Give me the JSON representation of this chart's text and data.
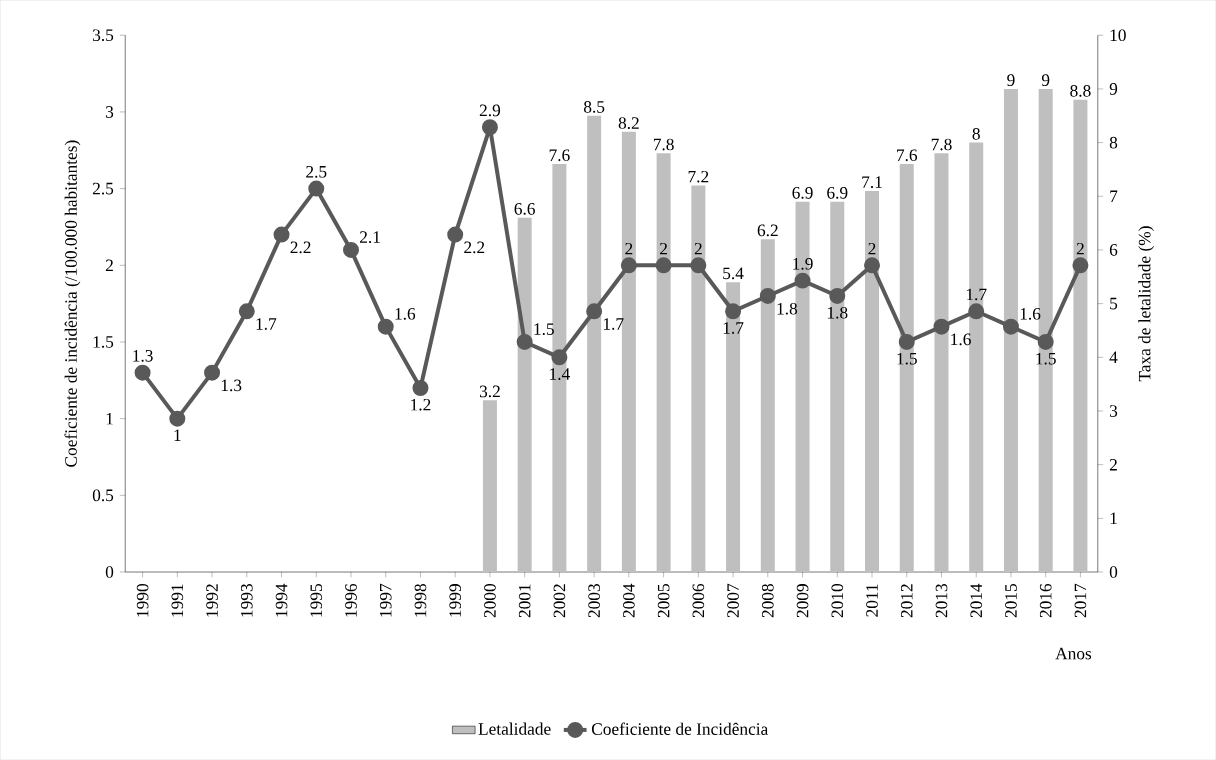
{
  "chart_data": {
    "type": "bar",
    "categories": [
      "1990",
      "1991",
      "1992",
      "1993",
      "1994",
      "1995",
      "1996",
      "1997",
      "1998",
      "1999",
      "2000",
      "2001",
      "2002",
      "2003",
      "2004",
      "2005",
      "2006",
      "2007",
      "2008",
      "2009",
      "2010",
      "2011",
      "2012",
      "2013",
      "2014",
      "2015",
      "2016",
      "2017"
    ],
    "xlabel": "Anos",
    "ylabel": "Coeficiente de incidência (/100.000 habitantes)",
    "y2label": "Taxa de letalidade (%)",
    "series": [
      {
        "name": "Letalidade",
        "axis": "y2",
        "color": "#bfbfbf",
        "values": [
          null,
          null,
          null,
          null,
          null,
          null,
          null,
          null,
          null,
          null,
          3.2,
          6.6,
          7.6,
          8.5,
          8.2,
          7.8,
          7.2,
          5.4,
          6.2,
          6.9,
          6.9,
          7.1,
          7.6,
          7.8,
          8,
          9,
          9,
          8.8
        ]
      },
      {
        "name": "Coeficiente de Incidência",
        "type": "line",
        "color": "#595959",
        "marker": "circle",
        "values": [
          1.3,
          1,
          1.3,
          1.7,
          2.2,
          2.5,
          2.1,
          1.6,
          1.2,
          2.2,
          2.9,
          1.5,
          1.4,
          1.7,
          2,
          2,
          2,
          1.7,
          1.8,
          1.9,
          1.8,
          2,
          1.5,
          1.6,
          1.7,
          1.6,
          1.5,
          2
        ]
      }
    ],
    "ylim": [
      0,
      3.5
    ],
    "yticks": [
      0,
      0.5,
      1,
      1.5,
      2,
      2.5,
      3,
      3.5
    ],
    "y2lim": [
      0,
      10
    ],
    "y2ticks": [
      0,
      1,
      2,
      3,
      4,
      5,
      6,
      7,
      8,
      9,
      10
    ],
    "data_labels": true,
    "legend": "bottom",
    "grid": false
  }
}
